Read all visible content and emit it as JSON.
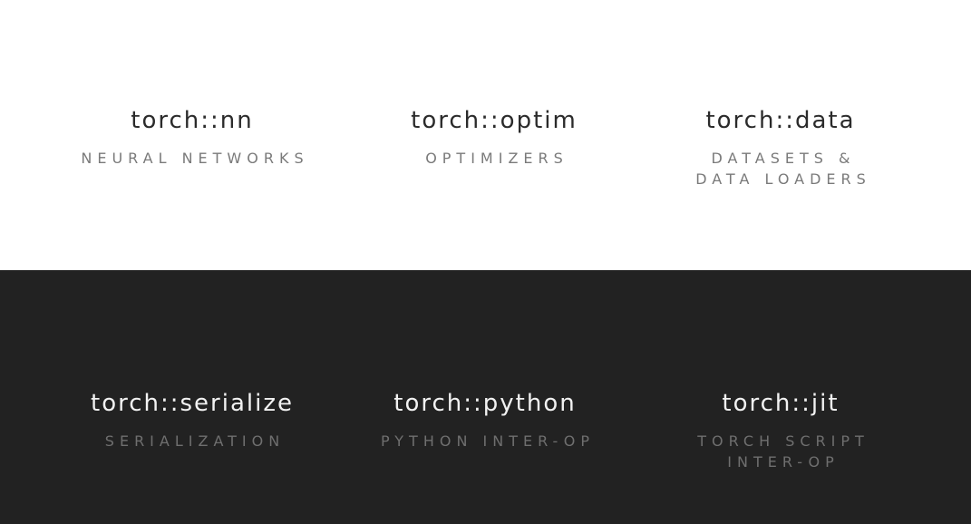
{
  "logo": {
    "icon": "pytorch-flame-icon",
    "color": "#5a4a44"
  },
  "top_row": [
    {
      "title": "torch::nn",
      "subtitle": "NEURAL NETWORKS"
    },
    {
      "title": "torch::optim",
      "subtitle": "OPTIMIZERS"
    },
    {
      "title": "torch::data",
      "subtitle": "DATASETS &\nDATA LOADERS"
    }
  ],
  "bottom_row": [
    {
      "title": "torch::serialize",
      "subtitle": "SERIALIZATION"
    },
    {
      "title": "torch::python",
      "subtitle": "PYTHON INTER-OP"
    },
    {
      "title": "torch::jit",
      "subtitle": "TORCH SCRIPT\nINTER-OP"
    }
  ],
  "colors": {
    "top_background": "#ffffff",
    "bottom_background": "#222222"
  }
}
